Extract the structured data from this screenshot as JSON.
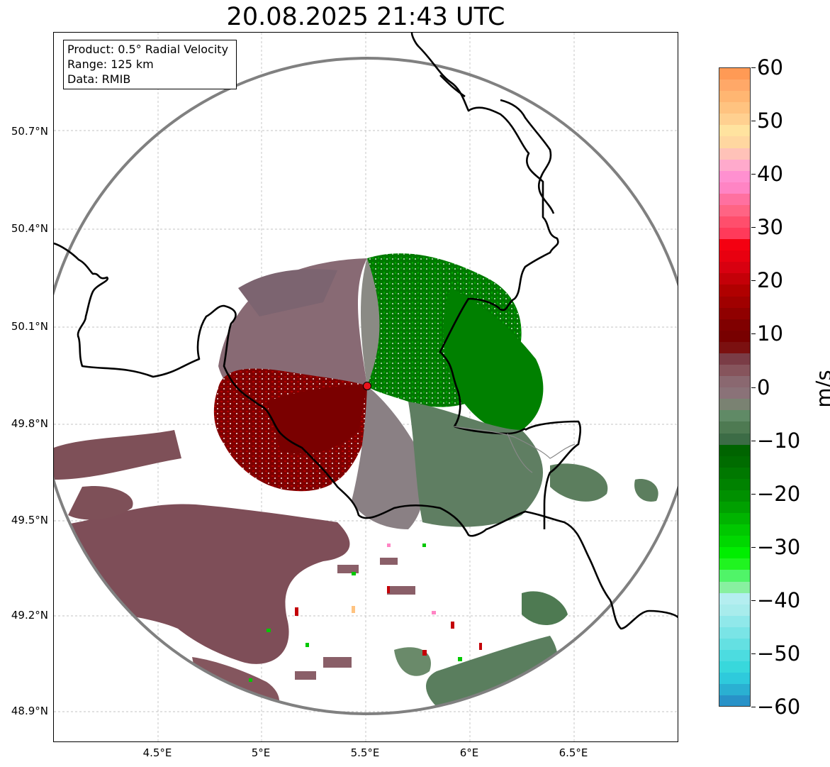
{
  "title": "20.08.2025 21:43 UTC",
  "info_box": {
    "product": "Product: 0.5° Radial Velocity",
    "range": "Range: 125 km",
    "data": "Data: RMIB"
  },
  "map": {
    "lat_labels": [
      "50.7°N",
      "50.4°N",
      "50.1°N",
      "49.8°N",
      "49.5°N",
      "49.2°N",
      "48.9°N"
    ],
    "lat_values": [
      50.7,
      50.4,
      50.1,
      49.8,
      49.5,
      49.2,
      48.9
    ],
    "lon_labels": [
      "4.5°E",
      "5°E",
      "5.5°E",
      "6°E",
      "6.5°E"
    ],
    "lon_values": [
      4.5,
      5.0,
      5.5,
      6.0,
      6.5
    ],
    "radar_site": {
      "lon": 5.5,
      "lat": 49.91
    },
    "range_ring_color": "#808080",
    "border_color": "#000000",
    "radar_marker_color": "#e8141b"
  },
  "colorbar": {
    "unit": "m/s",
    "min": -60,
    "max": 60,
    "tick_labels": [
      "60",
      "50",
      "40",
      "30",
      "20",
      "10",
      "0",
      "−10",
      "−20",
      "−30",
      "−40",
      "−50",
      "−60"
    ],
    "tick_values": [
      60,
      50,
      40,
      30,
      20,
      10,
      0,
      -10,
      -20,
      -30,
      -40,
      -50,
      -60
    ],
    "colors_top_to_bottom": [
      "#ff9a55",
      "#ffa868",
      "#ffb672",
      "#ffc380",
      "#ffd090",
      "#ffe39f",
      "#ffd7a0",
      "#ffc2b8",
      "#ffaacc",
      "#ff90d0",
      "#ff84c4",
      "#ff70a0",
      "#ff6484",
      "#ff4e6c",
      "#ff3a5a",
      "#f40011",
      "#e80010",
      "#d80010",
      "#c40008",
      "#b00000",
      "#a00000",
      "#900000",
      "#800000",
      "#780000",
      "#7b1010",
      "#7a3c46",
      "#86545c",
      "#8a6870",
      "#8a7278",
      "#7a8272",
      "#608a66",
      "#4e7a52",
      "#3c6c46",
      "#006400",
      "#006c00",
      "#007800",
      "#008200",
      "#009000",
      "#00a000",
      "#00b400",
      "#00c800",
      "#00d800",
      "#00ee00",
      "#20f420",
      "#50f468",
      "#88f0a0",
      "#b4eef0",
      "#a8ecec",
      "#90e8ea",
      "#7ae4e6",
      "#64e0e2",
      "#4cdce0",
      "#38d8dc",
      "#2ecadc",
      "#2ab0d2",
      "#2892c8"
    ]
  }
}
